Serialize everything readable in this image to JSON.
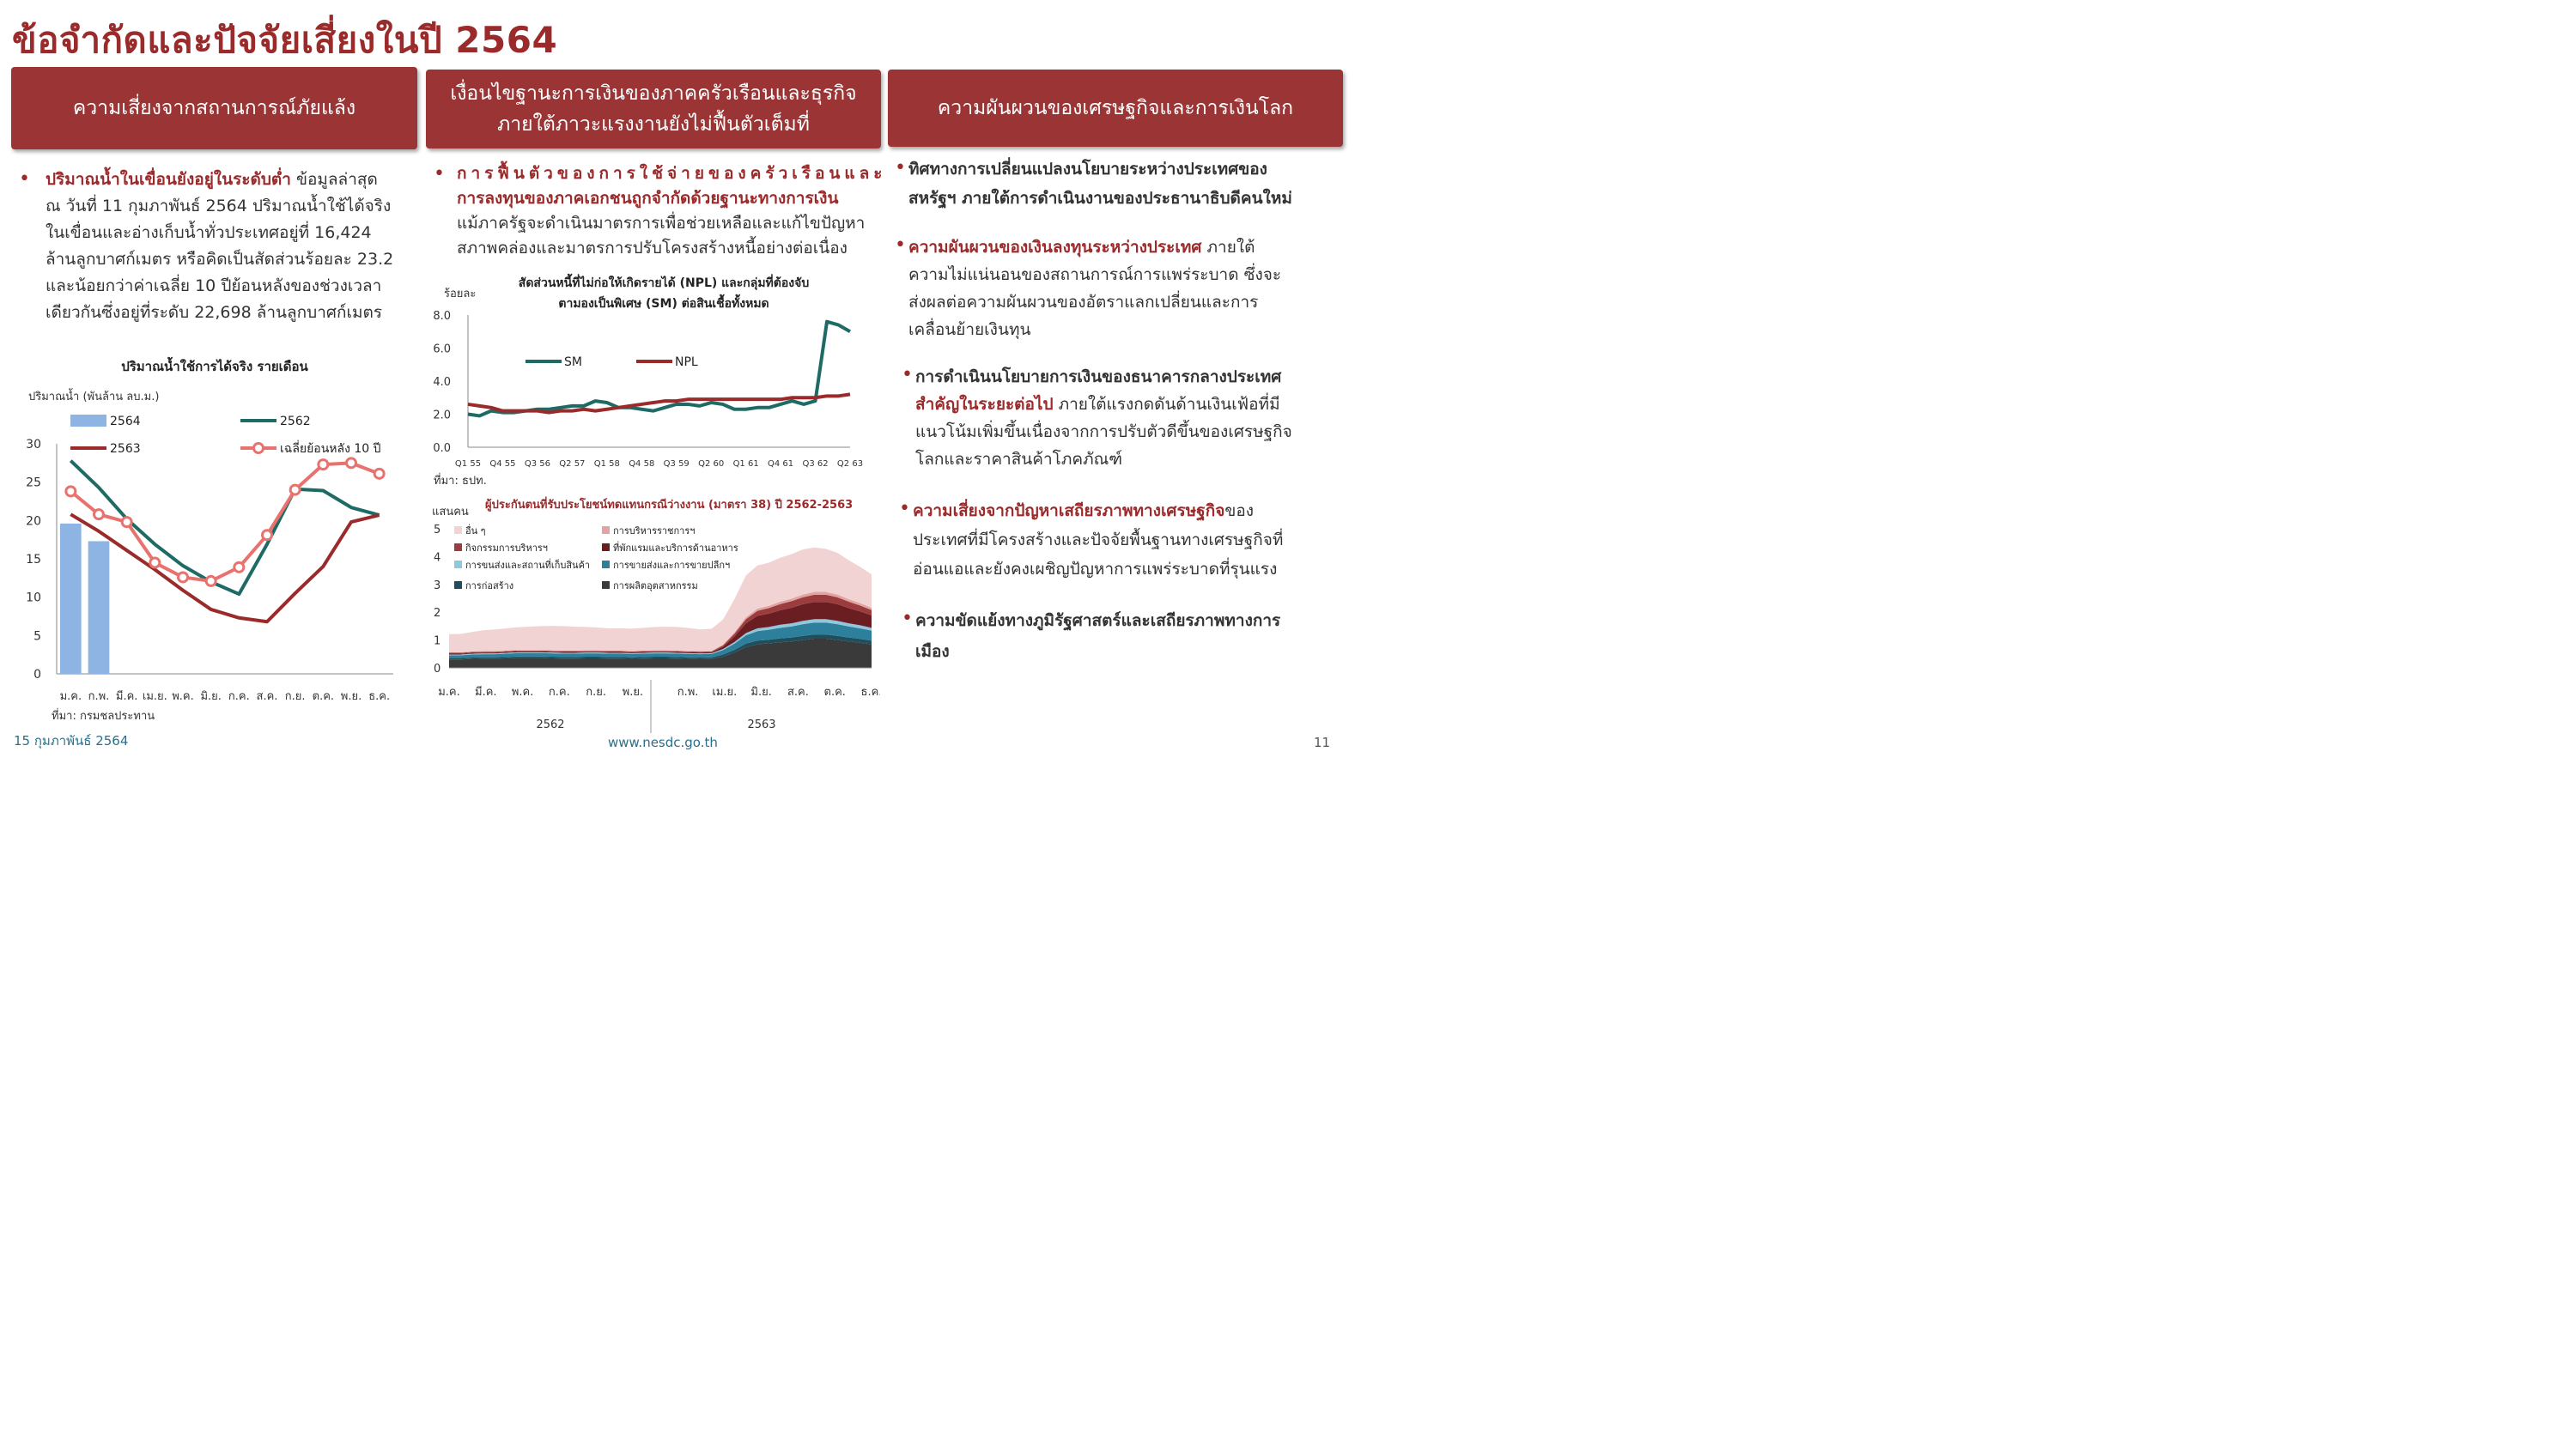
{
  "page_title": "ข้อจำกัดและปัจจัยเสี่ยงในปี 2564",
  "headers": {
    "col1": "ความเสี่ยงจากสถานการณ์ภัยแล้ง",
    "col2_line1": "เงื่อนไขฐานะการเงินของภาคครัวเรือนและธุรกิจ",
    "col2_line2": "ภายใต้ภาวะแรงงานยังไม่ฟื้นตัวเต็มที่",
    "col3": "ความผันผวนของเศรษฐกิจและการเงินโลก"
  },
  "col1": {
    "bold": "ปริมาณน้ำในเขื่อนยังอยู่ในระดับต่ำ",
    "lines": [
      "ข้อมูลล่าสุด",
      "ณ วันที่ 11 กุมภาพันธ์ 2564 ปริมาณน้ำใช้ได้จริง",
      "ในเขื่อนและอ่างเก็บน้ำทั่วประเทศอยู่ที่ 16,424",
      "ล้านลูกบาศก์เมตร หรือคิดเป็นสัดส่วนร้อยละ 23.2",
      "และน้อยกว่าค่าเฉลี่ย 10 ปีย้อนหลังของช่วงเวลา",
      "เดียวกันซึ่งอยู่ที่ระดับ 22,698 ล้านลูกบาศก์เมตร"
    ]
  },
  "col2": {
    "bold_line1": "การฟื้นตัวของการใช้จ่ายของครัวเรือนและ",
    "bold_line2": "การลงทุนของภาคเอกชนถูกจำกัดด้วยฐานะทางการเงิน",
    "line3": "แม้ภาครัฐจะดำเนินมาตรการเพื่อช่วยเหลือและแก้ไขปัญหา",
    "line4": "สภาพคล่องและมาตรการปรับโครงสร้างหนี้อย่างต่อเนื่อง"
  },
  "col3": {
    "b1_bold1": "ทิศทางการเปลี่ยนแปลงนโยบายระหว่างประเทศของ",
    "b1_bold2": "สหรัฐฯ ภายใต้การดำเนินงานของประธานาธิบดีคนใหม่",
    "b2_bold": "ความผันผวนของเงินลงทุนระหว่างประเทศ",
    "b2_rest1": "ภายใต้",
    "b2_lines": [
      "ความไม่แน่นอนของสถานการณ์การแพร่ระบาด ซึ่งจะ",
      "ส่งผลต่อความผันผวนของอัตราแลกเปลี่ยนและการ",
      "เคลื่อนย้ายเงินทุน"
    ],
    "b3_bold1": "การดำเนินนโยบายการเงินของธนาคารกลางประเทศ",
    "b3_bold2": "สำคัญในระยะต่อไป",
    "b3_rest2": "ภายใต้แรงกดดันด้านเงินเฟ้อที่มี",
    "b3_lines": [
      "แนวโน้มเพิ่มขึ้นเนื่องจากการปรับตัวดีขึ้นของเศรษฐกิจ",
      "โลกและราคาสินค้าโภคภัณฑ์"
    ],
    "b4_bold": "ความเสี่ยงจากปัญหาเสถียรภาพทางเศรษฐกิจ",
    "b4_rest1": "ของ",
    "b4_lines": [
      "ประเทศที่มีโครงสร้างและปัจจัยพื้นฐานทางเศรษฐกิจที่",
      "อ่อนแอและยังคงเผชิญปัญหาการแพร่ระบาดที่รุนแรง"
    ],
    "b5_bold1": "ความขัดแย้งทางภูมิรัฐศาสตร์และเสถียรภาพทางการ",
    "b5_bold2": "เมือง"
  },
  "footer": {
    "date": "15 กุมภาพันธ์ 2564",
    "url": "www.nesdc.go.th",
    "page": "11"
  },
  "chart_data": [
    {
      "type": "bar+line",
      "title": "ปริมาณน้ำใช้การได้จริง รายเดือน",
      "ylabel": "ปริมาณน้ำ (พันล้าน ลบ.ม.)",
      "source": "ที่มา: กรมชลประทาน",
      "categories": [
        "ม.ค.",
        "ก.พ.",
        "มี.ค.",
        "เม.ย.",
        "พ.ค.",
        "มิ.ย.",
        "ก.ค.",
        "ส.ค.",
        "ก.ย.",
        "ต.ค.",
        "พ.ย.",
        "ธ.ค."
      ],
      "ylim": [
        0,
        30
      ],
      "yticks": [
        0,
        5,
        10,
        15,
        20,
        25,
        30
      ],
      "series": [
        {
          "name": "2564",
          "kind": "bar",
          "color": "#8db4e2",
          "values": [
            19.6,
            17.3,
            null,
            null,
            null,
            null,
            null,
            null,
            null,
            null,
            null,
            null
          ]
        },
        {
          "name": "2562",
          "kind": "line",
          "color": "#1d6b64",
          "values": [
            27.8,
            24.3,
            20.2,
            16.9,
            14.1,
            12.0,
            10.4,
            16.9,
            24.1,
            23.9,
            21.7,
            20.7
          ]
        },
        {
          "name": "2563",
          "kind": "line",
          "color": "#9b2a2b",
          "values": [
            20.8,
            18.6,
            16.1,
            13.6,
            10.9,
            8.4,
            7.3,
            6.8,
            10.5,
            14.0,
            19.8,
            20.7
          ]
        },
        {
          "name": "เฉลี่ยย้อนหลัง 10 ปี",
          "kind": "line-marker",
          "color": "#e8726e",
          "values": [
            23.8,
            20.8,
            19.8,
            14.5,
            12.6,
            12.1,
            13.9,
            18.1,
            24.0,
            27.3,
            27.5,
            26.1
          ]
        }
      ],
      "legend": "top"
    },
    {
      "type": "line",
      "title_line1": "สัดส่วนหนี้ที่ไม่ก่อให้เกิดรายได้ (NPL) และกลุ่มที่ต้องจับ",
      "title_line2": "ตามองเป็นพิเศษ (SM) ต่อสินเชื้อทั้งหมด",
      "ylabel": "ร้อยละ",
      "source": "ที่มา: ธปท.",
      "ylim": [
        0,
        8
      ],
      "yticks": [
        "0.0",
        "2.0",
        "4.0",
        "6.0",
        "8.0"
      ],
      "xtick_labels": [
        "Q1 55",
        "Q4 55",
        "Q3 56",
        "Q2 57",
        "Q1 58",
        "Q4 58",
        "Q3 59",
        "Q2 60",
        "Q1 61",
        "Q4 61",
        "Q3 62",
        "Q2 63"
      ],
      "series": [
        {
          "name": "SM",
          "color": "#1d6b64",
          "values": [
            2.0,
            1.9,
            2.2,
            2.1,
            2.1,
            2.2,
            2.3,
            2.3,
            2.4,
            2.5,
            2.5,
            2.8,
            2.7,
            2.4,
            2.4,
            2.3,
            2.2,
            2.4,
            2.6,
            2.6,
            2.5,
            2.7,
            2.6,
            2.3,
            2.3,
            2.4,
            2.4,
            2.6,
            2.8,
            2.6,
            2.8,
            7.6,
            7.4,
            7.0
          ]
        },
        {
          "name": "NPL",
          "color": "#9b2a2b",
          "values": [
            2.6,
            2.5,
            2.4,
            2.2,
            2.2,
            2.2,
            2.2,
            2.1,
            2.2,
            2.2,
            2.3,
            2.2,
            2.3,
            2.4,
            2.5,
            2.6,
            2.7,
            2.8,
            2.8,
            2.9,
            2.9,
            2.9,
            2.9,
            2.9,
            2.9,
            2.9,
            2.9,
            2.9,
            3.0,
            3.0,
            3.0,
            3.1,
            3.1,
            3.2
          ]
        }
      ],
      "legend": "inside-top"
    },
    {
      "type": "area",
      "stacked": true,
      "title": "ผู้ประกันตนที่รับประโยชน์ทดแทนกรณีว่างงาน (มาตรา 38) ปี 2562-2563",
      "ylabel": "แสนคน",
      "ylim": [
        0,
        5
      ],
      "yticks": [
        0,
        1,
        2,
        3,
        4,
        5
      ],
      "x_labels": [
        "ม.ค.",
        "มี.ค.",
        "พ.ค.",
        "ก.ค.",
        "ก.ย.",
        "พ.ย.",
        "ก.พ.",
        "เม.ย.",
        "มิ.ย.",
        "ส.ค.",
        "ต.ค.",
        "ธ.ค."
      ],
      "year_labels": [
        "2562",
        "2563"
      ],
      "series": [
        {
          "name": "การผลิตอุตสาหกรรม",
          "color": "#3a3a3a",
          "values": [
            0.3,
            0.3,
            0.32,
            0.33,
            0.33,
            0.34,
            0.35,
            0.35,
            0.35,
            0.34,
            0.33,
            0.33,
            0.34,
            0.34,
            0.33,
            0.33,
            0.32,
            0.33,
            0.34,
            0.34,
            0.33,
            0.32,
            0.31,
            0.32,
            0.4,
            0.55,
            0.75,
            0.85,
            0.88,
            0.92,
            0.95,
            1.0,
            1.05,
            1.05,
            1.0,
            0.95,
            0.9,
            0.85
          ]
        },
        {
          "name": "การก่อสร้าง",
          "color": "#1f4f5c",
          "values": [
            0.05,
            0.05,
            0.05,
            0.05,
            0.05,
            0.05,
            0.06,
            0.06,
            0.06,
            0.06,
            0.06,
            0.06,
            0.06,
            0.06,
            0.06,
            0.06,
            0.06,
            0.06,
            0.06,
            0.06,
            0.06,
            0.06,
            0.06,
            0.06,
            0.08,
            0.1,
            0.12,
            0.13,
            0.13,
            0.14,
            0.14,
            0.15,
            0.15,
            0.15,
            0.15,
            0.14,
            0.14,
            0.13
          ]
        },
        {
          "name": "การขายส่งและการขายปลีกฯ",
          "color": "#2e7f9b",
          "values": [
            0.1,
            0.1,
            0.11,
            0.11,
            0.11,
            0.12,
            0.12,
            0.12,
            0.12,
            0.12,
            0.12,
            0.12,
            0.12,
            0.12,
            0.12,
            0.12,
            0.12,
            0.12,
            0.12,
            0.12,
            0.12,
            0.12,
            0.12,
            0.12,
            0.16,
            0.22,
            0.3,
            0.34,
            0.36,
            0.38,
            0.4,
            0.42,
            0.43,
            0.43,
            0.42,
            0.4,
            0.38,
            0.36
          ]
        },
        {
          "name": "การขนส่งและสถานที่เก็บสินค้า",
          "color": "#8fc8dc",
          "values": [
            0.03,
            0.03,
            0.03,
            0.03,
            0.03,
            0.03,
            0.03,
            0.03,
            0.03,
            0.03,
            0.03,
            0.03,
            0.03,
            0.03,
            0.03,
            0.03,
            0.03,
            0.03,
            0.03,
            0.03,
            0.03,
            0.03,
            0.03,
            0.03,
            0.04,
            0.06,
            0.08,
            0.1,
            0.1,
            0.11,
            0.11,
            0.12,
            0.12,
            0.12,
            0.12,
            0.11,
            0.11,
            0.1
          ]
        },
        {
          "name": "ที่พักแรมและบริการด้านอาหาร",
          "color": "#6b1e22",
          "values": [
            0.03,
            0.03,
            0.03,
            0.03,
            0.03,
            0.03,
            0.03,
            0.03,
            0.03,
            0.03,
            0.03,
            0.03,
            0.03,
            0.03,
            0.03,
            0.03,
            0.03,
            0.03,
            0.03,
            0.03,
            0.03,
            0.03,
            0.03,
            0.03,
            0.08,
            0.2,
            0.35,
            0.45,
            0.48,
            0.52,
            0.56,
            0.6,
            0.62,
            0.62,
            0.6,
            0.55,
            0.5,
            0.45
          ]
        },
        {
          "name": "กิจกรรมการบริหารฯ",
          "color": "#9b3d3f",
          "values": [
            0.03,
            0.03,
            0.03,
            0.03,
            0.03,
            0.03,
            0.03,
            0.03,
            0.03,
            0.03,
            0.03,
            0.03,
            0.03,
            0.03,
            0.03,
            0.03,
            0.03,
            0.03,
            0.03,
            0.03,
            0.03,
            0.03,
            0.03,
            0.03,
            0.05,
            0.1,
            0.15,
            0.18,
            0.2,
            0.22,
            0.24,
            0.25,
            0.26,
            0.26,
            0.25,
            0.23,
            0.21,
            0.19
          ]
        },
        {
          "name": "การบริหารราชการฯ",
          "color": "#e3a3a3",
          "values": [
            0.02,
            0.02,
            0.02,
            0.02,
            0.02,
            0.02,
            0.02,
            0.02,
            0.02,
            0.02,
            0.02,
            0.02,
            0.02,
            0.02,
            0.02,
            0.02,
            0.02,
            0.02,
            0.02,
            0.02,
            0.02,
            0.02,
            0.02,
            0.02,
            0.03,
            0.05,
            0.07,
            0.08,
            0.08,
            0.09,
            0.09,
            0.1,
            0.1,
            0.1,
            0.1,
            0.09,
            0.09,
            0.08
          ]
        },
        {
          "name": "อื่น ๆ",
          "color": "#f2d3d3",
          "values": [
            0.65,
            0.66,
            0.7,
            0.75,
            0.78,
            0.8,
            0.82,
            0.84,
            0.86,
            0.88,
            0.88,
            0.86,
            0.84,
            0.82,
            0.8,
            0.8,
            0.8,
            0.82,
            0.84,
            0.85,
            0.85,
            0.82,
            0.78,
            0.8,
            0.9,
            1.2,
            1.5,
            1.55,
            1.55,
            1.58,
            1.6,
            1.62,
            1.6,
            1.55,
            1.5,
            1.4,
            1.3,
            1.2
          ]
        }
      ],
      "legend": "top-inside"
    }
  ]
}
